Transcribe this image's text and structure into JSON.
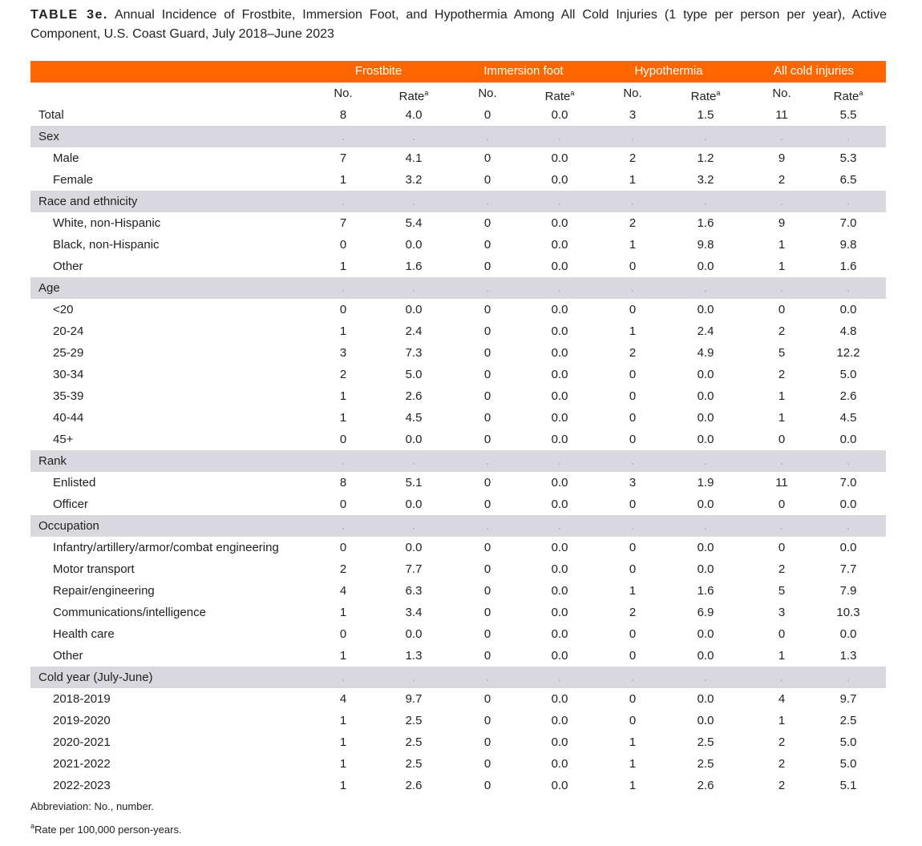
{
  "header": {
    "label": "TABLE 3e.",
    "title": "Annual Incidence of Frostbite, Immersion Foot, and Hypothermia Among All Cold Injuries (1 type per person per year), Active Component, U.S. Coast Guard, July 2018–June 2023"
  },
  "table": {
    "groups": [
      "Frostbite",
      "Immersion foot",
      "Hypothermia",
      "All cold injuries"
    ],
    "columns": [
      {
        "label": "No."
      },
      {
        "label": "Rate",
        "sup": "a"
      },
      {
        "label": "No."
      },
      {
        "label": "Rate",
        "sup": "a"
      },
      {
        "label": "No."
      },
      {
        "label": "Rate",
        "sup": "a"
      },
      {
        "label": "No."
      },
      {
        "label": "Rate",
        "sup": "a"
      }
    ],
    "total": {
      "label": "Total",
      "cells": [
        "8",
        "4.0",
        "0",
        "0.0",
        "3",
        "1.5",
        "11",
        "5.5"
      ]
    },
    "sections": [
      {
        "label": "Sex",
        "cells": [
          ".",
          ".",
          ".",
          ".",
          ".",
          ".",
          ".",
          "."
        ],
        "rows": [
          {
            "label": "Male",
            "cells": [
              "7",
              "4.1",
              "0",
              "0.0",
              "2",
              "1.2",
              "9",
              "5.3"
            ]
          },
          {
            "label": "Female",
            "cells": [
              "1",
              "3.2",
              "0",
              "0.0",
              "1",
              "3.2",
              "2",
              "6.5"
            ]
          }
        ]
      },
      {
        "label": "Race and ethnicity",
        "cells": [
          ".",
          ".",
          ".",
          ".",
          ".",
          ".",
          ".",
          "."
        ],
        "rows": [
          {
            "label": "White, non-Hispanic",
            "cells": [
              "7",
              "5.4",
              "0",
              "0.0",
              "2",
              "1.6",
              "9",
              "7.0"
            ]
          },
          {
            "label": "Black, non-Hispanic",
            "cells": [
              "0",
              "0.0",
              "0",
              "0.0",
              "1",
              "9.8",
              "1",
              "9.8"
            ]
          },
          {
            "label": "Other",
            "cells": [
              "1",
              "1.6",
              "0",
              "0.0",
              "0",
              "0.0",
              "1",
              "1.6"
            ]
          }
        ]
      },
      {
        "label": "Age",
        "cells": [
          ".",
          ".",
          ".",
          ".",
          ".",
          ".",
          ".",
          "."
        ],
        "rows": [
          {
            "label": "<20",
            "cells": [
              "0",
              "0.0",
              "0",
              "0.0",
              "0",
              "0.0",
              "0",
              "0.0"
            ]
          },
          {
            "label": "20-24",
            "cells": [
              "1",
              "2.4",
              "0",
              "0.0",
              "1",
              "2.4",
              "2",
              "4.8"
            ]
          },
          {
            "label": "25-29",
            "cells": [
              "3",
              "7.3",
              "0",
              "0.0",
              "2",
              "4.9",
              "5",
              "12.2"
            ]
          },
          {
            "label": "30-34",
            "cells": [
              "2",
              "5.0",
              "0",
              "0.0",
              "0",
              "0.0",
              "2",
              "5.0"
            ]
          },
          {
            "label": "35-39",
            "cells": [
              "1",
              "2.6",
              "0",
              "0.0",
              "0",
              "0.0",
              "1",
              "2.6"
            ]
          },
          {
            "label": "40-44",
            "cells": [
              "1",
              "4.5",
              "0",
              "0.0",
              "0",
              "0.0",
              "1",
              "4.5"
            ]
          },
          {
            "label": "45+",
            "cells": [
              "0",
              "0.0",
              "0",
              "0.0",
              "0",
              "0.0",
              "0",
              "0.0"
            ]
          }
        ]
      },
      {
        "label": "Rank",
        "cells": [
          ".",
          ".",
          ".",
          ".",
          ".",
          ".",
          ".",
          "."
        ],
        "rows": [
          {
            "label": "Enlisted",
            "cells": [
              "8",
              "5.1",
              "0",
              "0.0",
              "3",
              "1.9",
              "11",
              "7.0"
            ]
          },
          {
            "label": "Officer",
            "cells": [
              "0",
              "0.0",
              "0",
              "0.0",
              "0",
              "0.0",
              "0",
              "0.0"
            ]
          }
        ]
      },
      {
        "label": "Occupation",
        "cells": [
          ".",
          ".",
          ".",
          ".",
          ".",
          ".",
          ".",
          "."
        ],
        "rows": [
          {
            "label": "Infantry/artillery/armor/combat engineering",
            "cells": [
              "0",
              "0.0",
              "0",
              "0.0",
              "0",
              "0.0",
              "0",
              "0.0"
            ]
          },
          {
            "label": "Motor transport",
            "cells": [
              "2",
              "7.7",
              "0",
              "0.0",
              "0",
              "0.0",
              "2",
              "7.7"
            ]
          },
          {
            "label": "Repair/engineering",
            "cells": [
              "4",
              "6.3",
              "0",
              "0.0",
              "1",
              "1.6",
              "5",
              "7.9"
            ]
          },
          {
            "label": "Communications/intelligence",
            "cells": [
              "1",
              "3.4",
              "0",
              "0.0",
              "2",
              "6.9",
              "3",
              "10.3"
            ]
          },
          {
            "label": "Health care",
            "cells": [
              "0",
              "0.0",
              "0",
              "0.0",
              "0",
              "0.0",
              "0",
              "0.0"
            ]
          },
          {
            "label": "Other",
            "cells": [
              "1",
              "1.3",
              "0",
              "0.0",
              "0",
              "0.0",
              "1",
              "1.3"
            ]
          }
        ]
      },
      {
        "label": "Cold year (July-June)",
        "cells": [
          ".",
          ".",
          ".",
          ".",
          ".",
          ".",
          ".",
          "."
        ],
        "rows": [
          {
            "label": "2018-2019",
            "cells": [
              "4",
              "9.7",
              "0",
              "0.0",
              "0",
              "0.0",
              "4",
              "9.7"
            ]
          },
          {
            "label": "2019-2020",
            "cells": [
              "1",
              "2.5",
              "0",
              "0.0",
              "0",
              "0.0",
              "1",
              "2.5"
            ]
          },
          {
            "label": "2020-2021",
            "cells": [
              "1",
              "2.5",
              "0",
              "0.0",
              "1",
              "2.5",
              "2",
              "5.0"
            ]
          },
          {
            "label": "2021-2022",
            "cells": [
              "1",
              "2.5",
              "0",
              "0.0",
              "1",
              "2.5",
              "2",
              "5.0"
            ]
          },
          {
            "label": "2022-2023",
            "cells": [
              "1",
              "2.6",
              "0",
              "0.0",
              "1",
              "2.6",
              "2",
              "5.1"
            ]
          }
        ]
      }
    ]
  },
  "footnotes": {
    "abbreviation": "Abbreviation: No., number.",
    "rate": {
      "sup": "a",
      "text": "Rate per 100,000 person-years."
    }
  }
}
